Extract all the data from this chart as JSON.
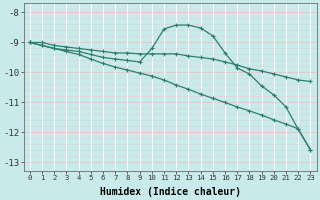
{
  "xlabel": "Humidex (Indice chaleur)",
  "bg_color": "#c8eaea",
  "line_color": "#2e7d6e",
  "grid_color_h": "#e8c8c8",
  "grid_color_v": "#ffffff",
  "xlim": [
    -0.5,
    23.5
  ],
  "ylim": [
    -13.3,
    -7.7
  ],
  "yticks": [
    -13,
    -12,
    -11,
    -10,
    -9,
    -8
  ],
  "line1_x": [
    0,
    1,
    2,
    3,
    4,
    5,
    6,
    7,
    8,
    9,
    10,
    11,
    12,
    13,
    14,
    15,
    16,
    17,
    18,
    19,
    20,
    21,
    22,
    23
  ],
  "line1_y": [
    -9.0,
    -9.0,
    -9.1,
    -9.15,
    -9.2,
    -9.25,
    -9.3,
    -9.35,
    -9.35,
    -9.38,
    -9.38,
    -9.38,
    -9.38,
    -9.45,
    -9.5,
    -9.55,
    -9.65,
    -9.75,
    -9.88,
    -9.95,
    -10.05,
    -10.15,
    -10.25,
    -10.3
  ],
  "line2_x": [
    0,
    1,
    2,
    3,
    4,
    5,
    6,
    7,
    8,
    9,
    10,
    11,
    12,
    13,
    14,
    15,
    16,
    17,
    18,
    19,
    20,
    21,
    22,
    23
  ],
  "line2_y": [
    -9.0,
    -9.1,
    -9.2,
    -9.25,
    -9.3,
    -9.4,
    -9.5,
    -9.55,
    -9.6,
    -9.65,
    -9.2,
    -8.55,
    -8.42,
    -8.42,
    -8.52,
    -8.78,
    -9.35,
    -9.85,
    -10.05,
    -10.45,
    -10.75,
    -11.15,
    -11.9,
    -12.58
  ],
  "line3_x": [
    0,
    1,
    2,
    3,
    4,
    5,
    6,
    7,
    8,
    9,
    10,
    11,
    12,
    13,
    14,
    15,
    16,
    17,
    18,
    19,
    20,
    21,
    22,
    23
  ],
  "line3_y": [
    -9.0,
    -9.1,
    -9.2,
    -9.3,
    -9.4,
    -9.55,
    -9.7,
    -9.82,
    -9.92,
    -10.02,
    -10.12,
    -10.25,
    -10.42,
    -10.56,
    -10.72,
    -10.86,
    -11.0,
    -11.15,
    -11.28,
    -11.42,
    -11.58,
    -11.72,
    -11.88,
    -12.58
  ]
}
